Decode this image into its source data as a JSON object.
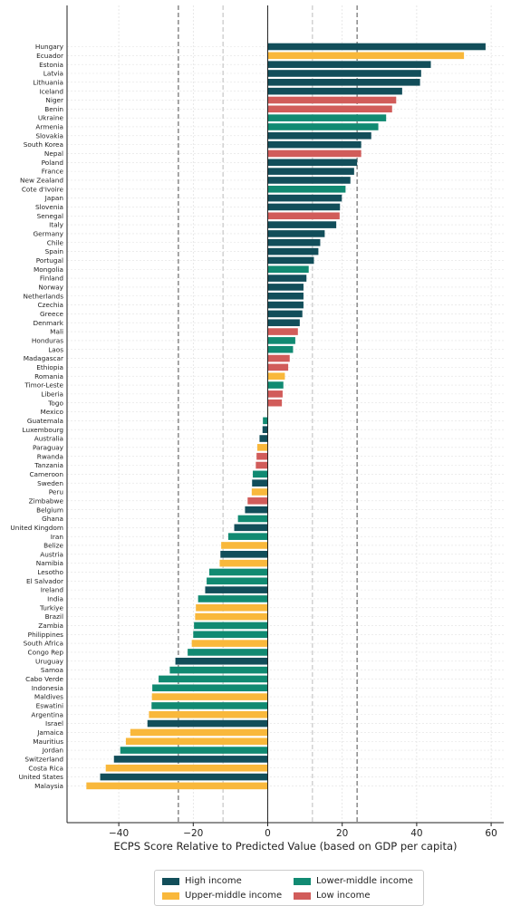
{
  "chart_data": {
    "type": "bar",
    "orientation": "horizontal",
    "xlabel": "ECPS Score Relative to Predicted Value (based on GDP per capita)",
    "ylabel": "",
    "title": "",
    "xlim": [
      -54,
      63
    ],
    "xticks": [
      -40,
      -20,
      0,
      20,
      40,
      60
    ],
    "xtick_labels": [
      "−40",
      "−20",
      "0",
      "20",
      "40",
      "60"
    ],
    "grid": true,
    "reference_lines": [
      {
        "x": -24,
        "style": "dashed",
        "color": "#777777"
      },
      {
        "x": -12,
        "style": "dashed",
        "color": "#cccccc"
      },
      {
        "x": 12,
        "style": "dashed",
        "color": "#cccccc"
      },
      {
        "x": 24,
        "style": "dashed",
        "color": "#777777"
      }
    ],
    "legend_position": "bottom",
    "legend": [
      {
        "label": "High income",
        "color": "#124e5a"
      },
      {
        "label": "Upper-middle income",
        "color": "#f9b83b"
      },
      {
        "label": "Lower-middle income",
        "color": "#118a72"
      },
      {
        "label": "Low income",
        "color": "#d15c5a"
      }
    ],
    "bars": [
      {
        "country": "Hungary",
        "value": 58.5,
        "group": "High income"
      },
      {
        "country": "Ecuador",
        "value": 52.7,
        "group": "Upper-middle income"
      },
      {
        "country": "Estonia",
        "value": 43.8,
        "group": "High income"
      },
      {
        "country": "Latvia",
        "value": 41.2,
        "group": "High income"
      },
      {
        "country": "Lithuania",
        "value": 40.9,
        "group": "High income"
      },
      {
        "country": "Iceland",
        "value": 36.1,
        "group": "High income"
      },
      {
        "country": "Niger",
        "value": 34.5,
        "group": "Low income"
      },
      {
        "country": "Benin",
        "value": 33.4,
        "group": "Low income"
      },
      {
        "country": "Ukraine",
        "value": 31.8,
        "group": "Lower-middle income"
      },
      {
        "country": "Armenia",
        "value": 29.7,
        "group": "Lower-middle income"
      },
      {
        "country": "Slovakia",
        "value": 27.8,
        "group": "High income"
      },
      {
        "country": "South Korea",
        "value": 25.1,
        "group": "High income"
      },
      {
        "country": "Nepal",
        "value": 25.1,
        "group": "Low income"
      },
      {
        "country": "Poland",
        "value": 24.0,
        "group": "High income"
      },
      {
        "country": "France",
        "value": 23.2,
        "group": "High income"
      },
      {
        "country": "New Zealand",
        "value": 22.2,
        "group": "High income"
      },
      {
        "country": "Cote d'Ivoire",
        "value": 20.9,
        "group": "Lower-middle income"
      },
      {
        "country": "Japan",
        "value": 19.9,
        "group": "High income"
      },
      {
        "country": "Slovenia",
        "value": 19.4,
        "group": "High income"
      },
      {
        "country": "Senegal",
        "value": 19.3,
        "group": "Low income"
      },
      {
        "country": "Italy",
        "value": 18.4,
        "group": "High income"
      },
      {
        "country": "Germany",
        "value": 15.3,
        "group": "High income"
      },
      {
        "country": "Chile",
        "value": 14.1,
        "group": "High income"
      },
      {
        "country": "Spain",
        "value": 13.6,
        "group": "High income"
      },
      {
        "country": "Portugal",
        "value": 12.4,
        "group": "High income"
      },
      {
        "country": "Mongolia",
        "value": 11.0,
        "group": "Lower-middle income"
      },
      {
        "country": "Finland",
        "value": 10.4,
        "group": "High income"
      },
      {
        "country": "Norway",
        "value": 9.6,
        "group": "High income"
      },
      {
        "country": "Netherlands",
        "value": 9.6,
        "group": "High income"
      },
      {
        "country": "Czechia",
        "value": 9.6,
        "group": "High income"
      },
      {
        "country": "Greece",
        "value": 9.3,
        "group": "High income"
      },
      {
        "country": "Denmark",
        "value": 8.6,
        "group": "High income"
      },
      {
        "country": "Mali",
        "value": 8.1,
        "group": "Low income"
      },
      {
        "country": "Honduras",
        "value": 7.4,
        "group": "Lower-middle income"
      },
      {
        "country": "Laos",
        "value": 6.8,
        "group": "Lower-middle income"
      },
      {
        "country": "Madagascar",
        "value": 5.9,
        "group": "Low income"
      },
      {
        "country": "Ethiopia",
        "value": 5.5,
        "group": "Low income"
      },
      {
        "country": "Romania",
        "value": 4.6,
        "group": "Upper-middle income"
      },
      {
        "country": "Timor-Leste",
        "value": 4.2,
        "group": "Lower-middle income"
      },
      {
        "country": "Liberia",
        "value": 4.0,
        "group": "Low income"
      },
      {
        "country": "Togo",
        "value": 3.8,
        "group": "Low income"
      },
      {
        "country": "Mexico",
        "value": 0.1,
        "group": "Upper-middle income"
      },
      {
        "country": "Guatemala",
        "value": -1.3,
        "group": "Lower-middle income"
      },
      {
        "country": "Luxembourg",
        "value": -1.4,
        "group": "High income"
      },
      {
        "country": "Australia",
        "value": -2.2,
        "group": "High income"
      },
      {
        "country": "Paraguay",
        "value": -2.8,
        "group": "Upper-middle income"
      },
      {
        "country": "Rwanda",
        "value": -3.0,
        "group": "Low income"
      },
      {
        "country": "Tanzania",
        "value": -3.2,
        "group": "Low income"
      },
      {
        "country": "Cameroon",
        "value": -4.0,
        "group": "Lower-middle income"
      },
      {
        "country": "Sweden",
        "value": -4.2,
        "group": "High income"
      },
      {
        "country": "Peru",
        "value": -4.3,
        "group": "Upper-middle income"
      },
      {
        "country": "Zimbabwe",
        "value": -5.4,
        "group": "Low income"
      },
      {
        "country": "Belgium",
        "value": -6.1,
        "group": "High income"
      },
      {
        "country": "Ghana",
        "value": -8.0,
        "group": "Lower-middle income"
      },
      {
        "country": "United Kingdom",
        "value": -9.0,
        "group": "High income"
      },
      {
        "country": "Iran",
        "value": -10.6,
        "group": "Lower-middle income"
      },
      {
        "country": "Belize",
        "value": -12.5,
        "group": "Upper-middle income"
      },
      {
        "country": "Austria",
        "value": -12.7,
        "group": "High income"
      },
      {
        "country": "Namibia",
        "value": -12.9,
        "group": "Upper-middle income"
      },
      {
        "country": "Lesotho",
        "value": -15.7,
        "group": "Lower-middle income"
      },
      {
        "country": "El Salvador",
        "value": -16.4,
        "group": "Lower-middle income"
      },
      {
        "country": "Ireland",
        "value": -16.8,
        "group": "High income"
      },
      {
        "country": "India",
        "value": -18.7,
        "group": "Lower-middle income"
      },
      {
        "country": "Turkiye",
        "value": -19.3,
        "group": "Upper-middle income"
      },
      {
        "country": "Brazil",
        "value": -19.5,
        "group": "Upper-middle income"
      },
      {
        "country": "Zambia",
        "value": -19.8,
        "group": "Lower-middle income"
      },
      {
        "country": "Philippines",
        "value": -20.0,
        "group": "Lower-middle income"
      },
      {
        "country": "South Africa",
        "value": -20.4,
        "group": "Upper-middle income"
      },
      {
        "country": "Congo Rep",
        "value": -21.5,
        "group": "Lower-middle income"
      },
      {
        "country": "Uruguay",
        "value": -24.8,
        "group": "High income"
      },
      {
        "country": "Samoa",
        "value": -26.3,
        "group": "Lower-middle income"
      },
      {
        "country": "Cabo Verde",
        "value": -29.3,
        "group": "Lower-middle income"
      },
      {
        "country": "Indonesia",
        "value": -31.0,
        "group": "Lower-middle income"
      },
      {
        "country": "Maldives",
        "value": -31.1,
        "group": "Upper-middle income"
      },
      {
        "country": "Eswatini",
        "value": -31.2,
        "group": "Lower-middle income"
      },
      {
        "country": "Argentina",
        "value": -31.9,
        "group": "Upper-middle income"
      },
      {
        "country": "Israel",
        "value": -32.3,
        "group": "High income"
      },
      {
        "country": "Jamaica",
        "value": -36.9,
        "group": "Upper-middle income"
      },
      {
        "country": "Mauritius",
        "value": -38.1,
        "group": "Upper-middle income"
      },
      {
        "country": "Jordan",
        "value": -39.6,
        "group": "Lower-middle income"
      },
      {
        "country": "Switzerland",
        "value": -41.3,
        "group": "High income"
      },
      {
        "country": "Costa Rica",
        "value": -43.5,
        "group": "Upper-middle income"
      },
      {
        "country": "United States",
        "value": -45.0,
        "group": "High income"
      },
      {
        "country": "Malaysia",
        "value": -48.7,
        "group": "Upper-middle income"
      }
    ]
  }
}
